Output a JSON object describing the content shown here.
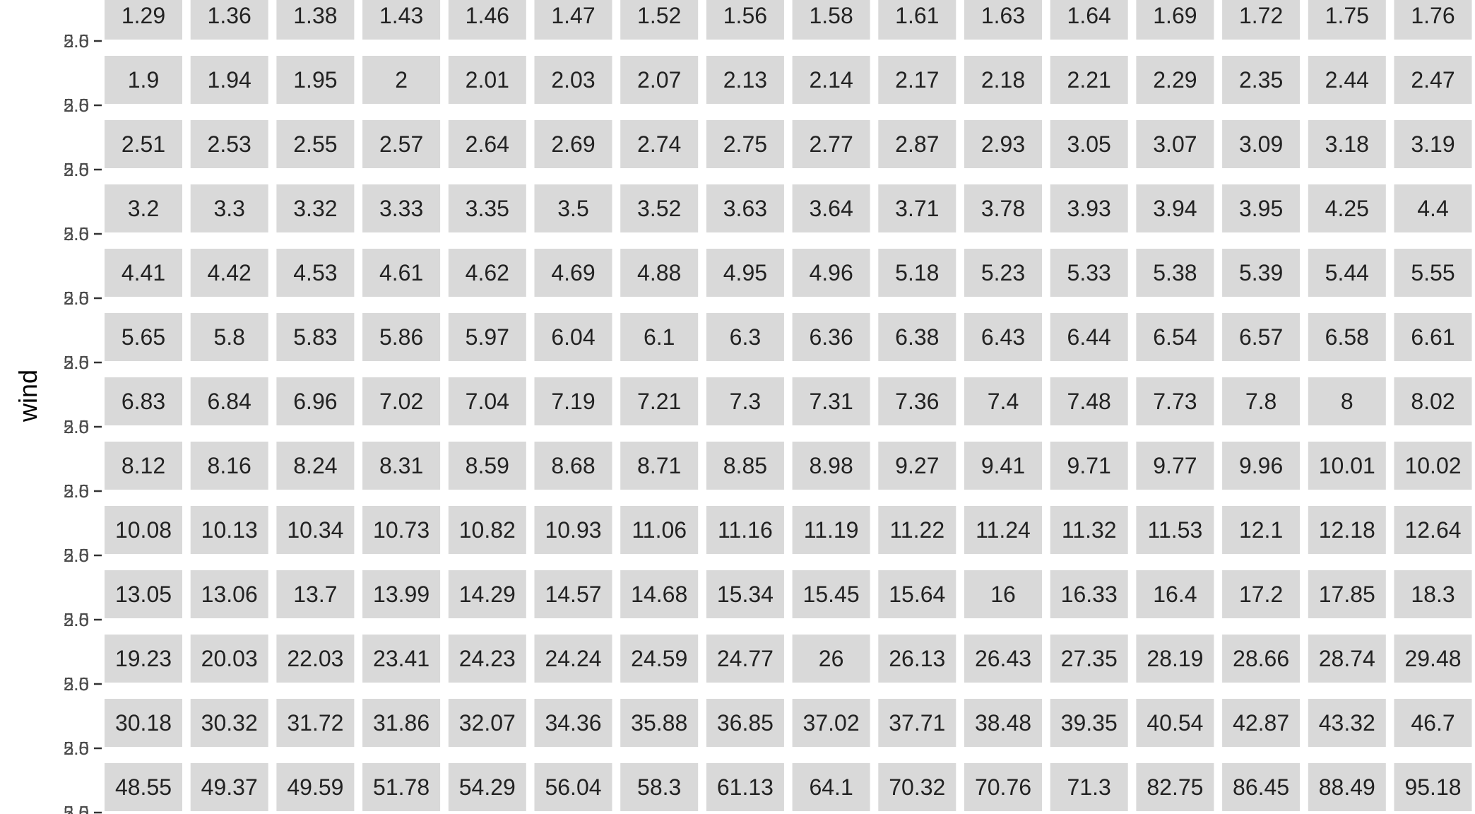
{
  "chart_data": {
    "type": "table",
    "title": "",
    "xlabel": "",
    "ylabel": "wind",
    "y_tick_labels_overlapping": [
      "2.5",
      "5.0"
    ],
    "panel_color": "#d9d9d9",
    "text_color": "#222222",
    "rows": [
      [
        "1.29",
        "1.36",
        "1.38",
        "1.43",
        "1.46",
        "1.47",
        "1.52",
        "1.56",
        "1.58",
        "1.61",
        "1.63",
        "1.64",
        "1.69",
        "1.72",
        "1.75",
        "1.76"
      ],
      [
        "1.9",
        "1.94",
        "1.95",
        "2",
        "2.01",
        "2.03",
        "2.07",
        "2.13",
        "2.14",
        "2.17",
        "2.18",
        "2.21",
        "2.29",
        "2.35",
        "2.44",
        "2.47"
      ],
      [
        "2.51",
        "2.53",
        "2.55",
        "2.57",
        "2.64",
        "2.69",
        "2.74",
        "2.75",
        "2.77",
        "2.87",
        "2.93",
        "3.05",
        "3.07",
        "3.09",
        "3.18",
        "3.19"
      ],
      [
        "3.2",
        "3.3",
        "3.32",
        "3.33",
        "3.35",
        "3.5",
        "3.52",
        "3.63",
        "3.64",
        "3.71",
        "3.78",
        "3.93",
        "3.94",
        "3.95",
        "4.25",
        "4.4"
      ],
      [
        "4.41",
        "4.42",
        "4.53",
        "4.61",
        "4.62",
        "4.69",
        "4.88",
        "4.95",
        "4.96",
        "5.18",
        "5.23",
        "5.33",
        "5.38",
        "5.39",
        "5.44",
        "5.55"
      ],
      [
        "5.65",
        "5.8",
        "5.83",
        "5.86",
        "5.97",
        "6.04",
        "6.1",
        "6.3",
        "6.36",
        "6.38",
        "6.43",
        "6.44",
        "6.54",
        "6.57",
        "6.58",
        "6.61"
      ],
      [
        "6.83",
        "6.84",
        "6.96",
        "7.02",
        "7.04",
        "7.19",
        "7.21",
        "7.3",
        "7.31",
        "7.36",
        "7.4",
        "7.48",
        "7.73",
        "7.8",
        "8",
        "8.02"
      ],
      [
        "8.12",
        "8.16",
        "8.24",
        "8.31",
        "8.59",
        "8.68",
        "8.71",
        "8.85",
        "8.98",
        "9.27",
        "9.41",
        "9.71",
        "9.77",
        "9.96",
        "10.01",
        "10.02"
      ],
      [
        "10.08",
        "10.13",
        "10.34",
        "10.73",
        "10.82",
        "10.93",
        "11.06",
        "11.16",
        "11.19",
        "11.22",
        "11.24",
        "11.32",
        "11.53",
        "12.1",
        "12.18",
        "12.64"
      ],
      [
        "13.05",
        "13.06",
        "13.7",
        "13.99",
        "14.29",
        "14.57",
        "14.68",
        "15.34",
        "15.45",
        "15.64",
        "16",
        "16.33",
        "16.4",
        "17.2",
        "17.85",
        "18.3"
      ],
      [
        "19.23",
        "20.03",
        "22.03",
        "23.41",
        "24.23",
        "24.24",
        "24.59",
        "24.77",
        "26",
        "26.13",
        "26.43",
        "27.35",
        "28.19",
        "28.66",
        "28.74",
        "29.48"
      ],
      [
        "30.18",
        "30.32",
        "31.72",
        "31.86",
        "32.07",
        "34.36",
        "35.88",
        "36.85",
        "37.02",
        "37.71",
        "38.48",
        "39.35",
        "40.54",
        "42.87",
        "43.32",
        "46.7"
      ],
      [
        "48.55",
        "49.37",
        "49.59",
        "51.78",
        "54.29",
        "56.04",
        "58.3",
        "61.13",
        "64.1",
        "70.32",
        "70.76",
        "71.3",
        "82.75",
        "86.45",
        "88.49",
        "95.18"
      ]
    ]
  }
}
